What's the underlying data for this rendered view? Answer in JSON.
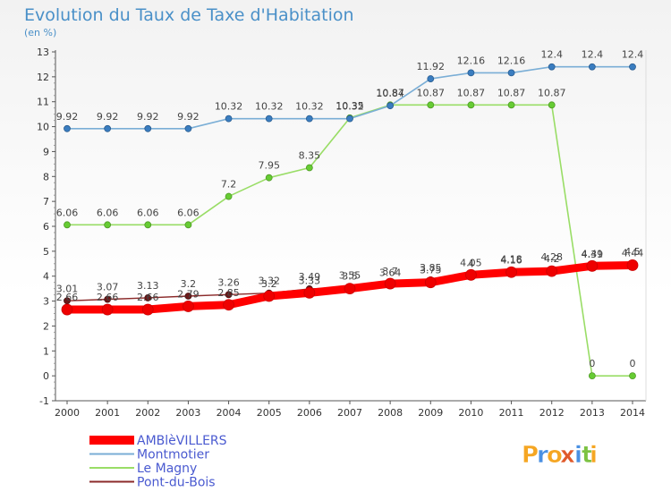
{
  "header": {
    "title": "Evolution du Taux de Taxe d'Habitation",
    "unit": "(en %)"
  },
  "brand": {
    "letters": [
      "P",
      "r",
      "o",
      "x",
      "i",
      "t",
      "i"
    ],
    "colors": [
      "#f5a623",
      "#4a90e2",
      "#f5a623",
      "#e05a2b",
      "#4a90e2",
      "#7cc243",
      "#f5a623"
    ]
  },
  "chart_data": {
    "type": "line",
    "title": "Evolution du Taux de Taxe d'Habitation",
    "ylabel": "(en %)",
    "xlabel": "",
    "x": [
      2000,
      2001,
      2002,
      2003,
      2004,
      2005,
      2006,
      2007,
      2008,
      2009,
      2010,
      2011,
      2012,
      2013,
      2014
    ],
    "ylim": [
      -1,
      13
    ],
    "yticks": [
      -1,
      0,
      1,
      2,
      3,
      4,
      5,
      6,
      7,
      8,
      9,
      10,
      11,
      12,
      13
    ],
    "grid": false,
    "legend_position": "bottom-left",
    "series": [
      {
        "name": "AMBlèVILLERS",
        "color": "#ff0000",
        "values": [
          2.66,
          2.66,
          2.66,
          2.79,
          2.85,
          3.2,
          3.33,
          3.5,
          3.7,
          3.75,
          4.05,
          4.16,
          4.2,
          4.41,
          4.44
        ]
      },
      {
        "name": "Montmotier",
        "color": "#7aaed6",
        "values": [
          9.92,
          9.92,
          9.92,
          9.92,
          10.32,
          10.32,
          10.32,
          10.32,
          10.84,
          11.92,
          12.16,
          12.16,
          12.4,
          12.4,
          12.4
        ]
      },
      {
        "name": "Le Magny",
        "color": "#99dd66",
        "values": [
          6.06,
          6.06,
          6.06,
          6.06,
          7.2,
          7.95,
          8.35,
          10.35,
          10.87,
          10.87,
          10.87,
          10.87,
          10.87,
          0,
          0
        ]
      },
      {
        "name": "Pont-du-Bois",
        "color": "#8b2a2a",
        "values": [
          3.01,
          3.07,
          3.13,
          3.2,
          3.26,
          3.32,
          3.49,
          3.55,
          3.64,
          3.85,
          4,
          4.18,
          4.28,
          4.39,
          4.5
        ]
      }
    ]
  }
}
